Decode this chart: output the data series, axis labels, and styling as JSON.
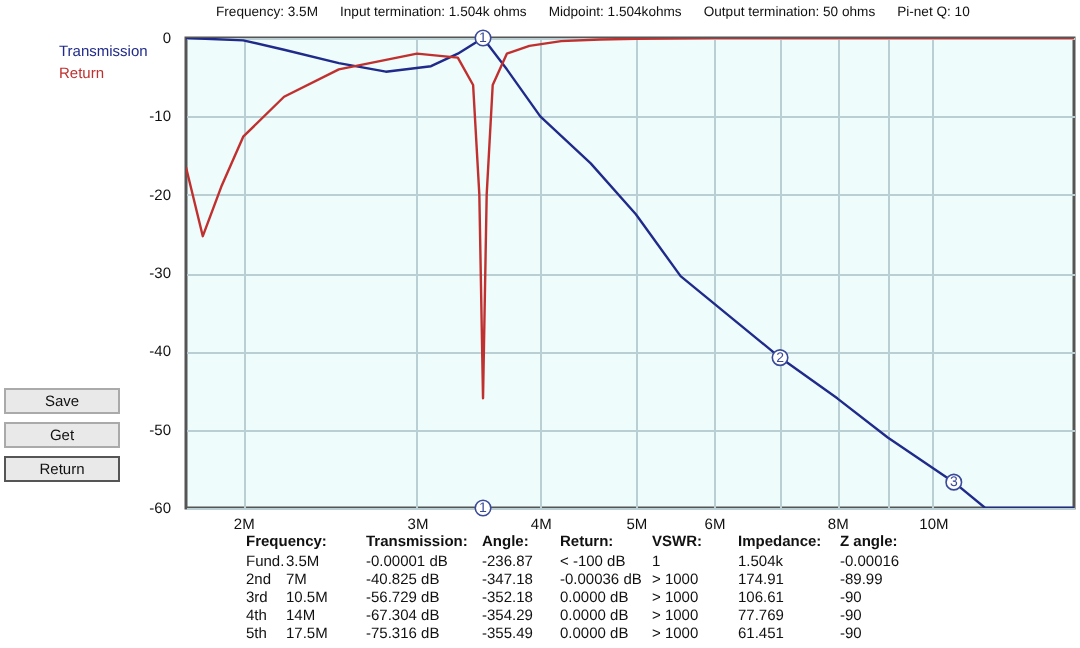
{
  "chart_data": {
    "type": "line",
    "legend": "top left",
    "grid": true,
    "log": "x",
    "line_style": "solid",
    "marker": "none",
    "xlim": [
      1.75,
      13.9
    ],
    "ylim": [
      -60,
      0
    ],
    "xticks": [
      {
        "value": 2,
        "label": "2M"
      },
      {
        "value": 3,
        "label": "3M"
      },
      {
        "value": 4,
        "label": "4M"
      },
      {
        "value": 5,
        "label": "5M"
      },
      {
        "value": 6,
        "label": "6M"
      },
      {
        "value": 7,
        "label": null
      },
      {
        "value": 8,
        "label": "8M"
      },
      {
        "value": 9,
        "label": null
      },
      {
        "value": 10,
        "label": "10M"
      }
    ],
    "yticks": [
      0,
      -10,
      -20,
      -30,
      -40,
      -50,
      -60
    ],
    "series": [
      {
        "name": "Transmission",
        "color": "#1f2a8a",
        "x": [
          1.75,
          2.0,
          2.2,
          2.5,
          2.79,
          3.1,
          3.3,
          3.5,
          3.7,
          4.0,
          4.5,
          5.0,
          5.55,
          7,
          8,
          9,
          10.5,
          11.3,
          13.9
        ],
        "values": [
          0,
          -0.3,
          -1.5,
          -3.2,
          -4.3,
          -3.6,
          -2,
          0,
          -4,
          -10,
          -16,
          -22.5,
          -30.4,
          -40.8,
          -46,
          -51,
          -56.7,
          -60,
          -60
        ]
      },
      {
        "name": "Return",
        "color": "#c0302f",
        "x": [
          1.75,
          1.82,
          1.9,
          2.0,
          2.2,
          2.5,
          3.0,
          3.3,
          3.42,
          3.47,
          3.5,
          3.53,
          3.58,
          3.7,
          3.9,
          4.2,
          4.6,
          5.0,
          6,
          13.9
        ],
        "values": [
          -16.5,
          -25.3,
          -19,
          -12.6,
          -7.5,
          -4,
          -2,
          -2.5,
          -6,
          -20,
          -46,
          -20,
          -6,
          -2,
          -1,
          -0.4,
          -0.2,
          -0.1,
          0,
          0
        ]
      }
    ],
    "annotations": [
      "Frequency:  3.5M",
      "Input termination: 1.504k ohms",
      "Midpoint: 1.504kohms",
      "Output termination: 50 ohms",
      "Pi-net Q: 10",
      "Save",
      "Get",
      "Return",
      "Frequency:",
      "Transmission:",
      "Angle:",
      "Return:",
      "VSWR:",
      "Impedance:",
      "Z angle:",
      "Fund.",
      "3.5M",
      "-0.00001 dB",
      "-236.87",
      "< -100 dB",
      "1",
      "1.504k",
      "-0.00016",
      "2nd",
      "7M",
      "-40.825 dB",
      "-347.18",
      "-0.00036 dB",
      "> 1000",
      "174.91",
      "-89.99",
      "3rd",
      "10.5M",
      "-56.729 dB",
      "-352.18",
      "0.0000  dB",
      "> 1000",
      "106.61",
      "-90",
      "4th",
      "14M",
      "-67.304 dB",
      "-354.29",
      "0.0000  dB",
      "> 1000",
      "77.769",
      "-90",
      "5th",
      "17.5M",
      "-75.316 dB",
      "-355.49",
      "0.0000  dB",
      "> 1000",
      "61.451",
      "-90",
      {
        "text": "1",
        "x": 3.5,
        "y": 0
      },
      {
        "text": "1",
        "x": 3.5,
        "y": -60
      },
      {
        "text": "2",
        "x": 7,
        "y": -40.8
      },
      {
        "text": "3",
        "x": 10.5,
        "y": -56.7
      }
    ]
  }
}
